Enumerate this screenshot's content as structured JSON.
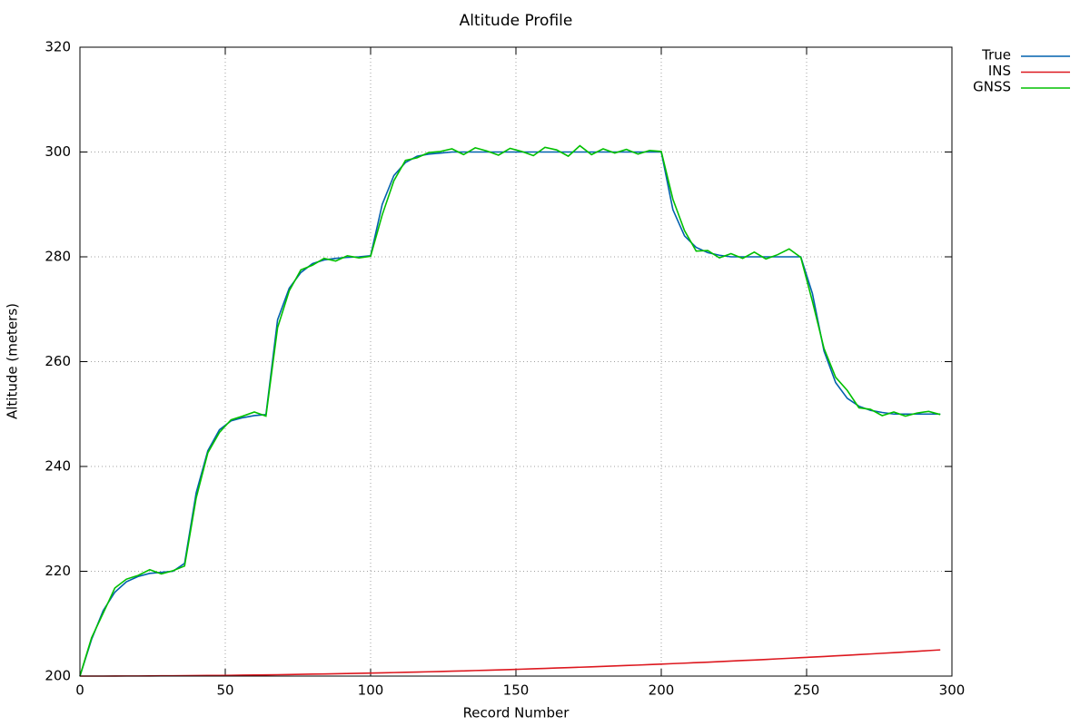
{
  "chart_data": {
    "type": "line",
    "title": "Altitude Profile",
    "xlabel": "Record Number",
    "ylabel": "Altitude (meters)",
    "x": [
      0,
      4,
      8,
      12,
      16,
      20,
      24,
      28,
      32,
      36,
      40,
      44,
      48,
      52,
      56,
      60,
      64,
      68,
      72,
      76,
      80,
      84,
      88,
      92,
      96,
      100,
      104,
      108,
      112,
      116,
      120,
      124,
      128,
      132,
      136,
      140,
      144,
      148,
      152,
      156,
      160,
      164,
      168,
      172,
      176,
      180,
      184,
      188,
      192,
      196,
      200,
      204,
      208,
      212,
      216,
      220,
      224,
      228,
      232,
      236,
      240,
      244,
      248,
      252,
      256,
      260,
      264,
      268,
      272,
      276,
      280,
      284,
      288,
      292,
      296
    ],
    "series": [
      {
        "name": "True",
        "color": "#0060ad",
        "values": [
          200,
          207,
          212.5,
          216,
          218,
          219,
          219.6,
          219.8,
          220,
          221.5,
          235,
          243,
          247,
          248.7,
          249.3,
          249.7,
          249.9,
          268,
          274,
          277,
          278.7,
          279.4,
          279.7,
          279.9,
          280,
          280.2,
          290,
          295.5,
          298,
          299.2,
          299.6,
          299.8,
          300,
          300,
          300,
          300,
          300,
          300,
          300,
          300,
          300,
          300,
          300,
          300,
          300,
          300,
          300,
          300,
          300,
          300,
          300,
          289,
          284,
          281.8,
          280.8,
          280.3,
          280,
          280,
          280,
          280,
          280,
          280,
          280,
          273,
          262,
          256,
          253,
          251.5,
          250.7,
          250.3,
          250,
          250,
          250,
          250,
          250
        ]
      },
      {
        "name": "INS",
        "color": "#dd181f",
        "values": [
          200,
          200,
          200,
          200.01,
          200.02,
          200.02,
          200.03,
          200.05,
          200.06,
          200.07,
          200.09,
          200.11,
          200.13,
          200.15,
          200.18,
          200.21,
          200.23,
          200.26,
          200.3,
          200.33,
          200.37,
          200.4,
          200.44,
          200.48,
          200.53,
          200.57,
          200.62,
          200.67,
          200.72,
          200.77,
          200.82,
          200.88,
          200.94,
          200.99,
          201.06,
          201.12,
          201.18,
          201.25,
          201.32,
          201.39,
          201.46,
          201.54,
          201.61,
          201.69,
          201.77,
          201.85,
          201.93,
          202.02,
          202.1,
          202.19,
          202.28,
          202.38,
          202.47,
          202.57,
          202.66,
          202.76,
          202.86,
          202.97,
          203.07,
          203.18,
          203.29,
          203.4,
          203.51,
          203.62,
          203.74,
          203.86,
          203.98,
          204.1,
          204.22,
          204.35,
          204.47,
          204.6,
          204.73,
          204.87,
          205
        ]
      },
      {
        "name": "GNSS",
        "color": "#00c000",
        "values": [
          200,
          207.3,
          212,
          216.8,
          218.5,
          219.2,
          220.3,
          219.5,
          220.1,
          221,
          234,
          242.6,
          246.5,
          248.9,
          249.6,
          250.4,
          249.6,
          266.5,
          273.5,
          277.5,
          278.4,
          279.7,
          279.2,
          280.2,
          279.8,
          280.1,
          288,
          294.5,
          298.4,
          298.9,
          299.9,
          300.1,
          300.6,
          299.5,
          300.8,
          300.2,
          299.4,
          300.7,
          300.1,
          299.3,
          300.9,
          300.4,
          299.2,
          301.2,
          299.5,
          300.6,
          299.8,
          300.5,
          299.6,
          300.3,
          300.1,
          291,
          285,
          281.1,
          281.2,
          279.8,
          280.6,
          279.7,
          280.9,
          279.6,
          280.4,
          281.5,
          279.9,
          271.5,
          262.5,
          257,
          254.5,
          251.2,
          250.9,
          249.7,
          250.4,
          249.6,
          250.2,
          250.5,
          249.9
        ]
      }
    ],
    "xlim": [
      0,
      300
    ],
    "xticks": [
      0,
      50,
      100,
      150,
      200,
      250,
      300
    ],
    "ylim": [
      200,
      320
    ],
    "yticks": [
      200,
      220,
      240,
      260,
      280,
      300,
      320
    ],
    "grid": true,
    "legend": "top-right"
  }
}
